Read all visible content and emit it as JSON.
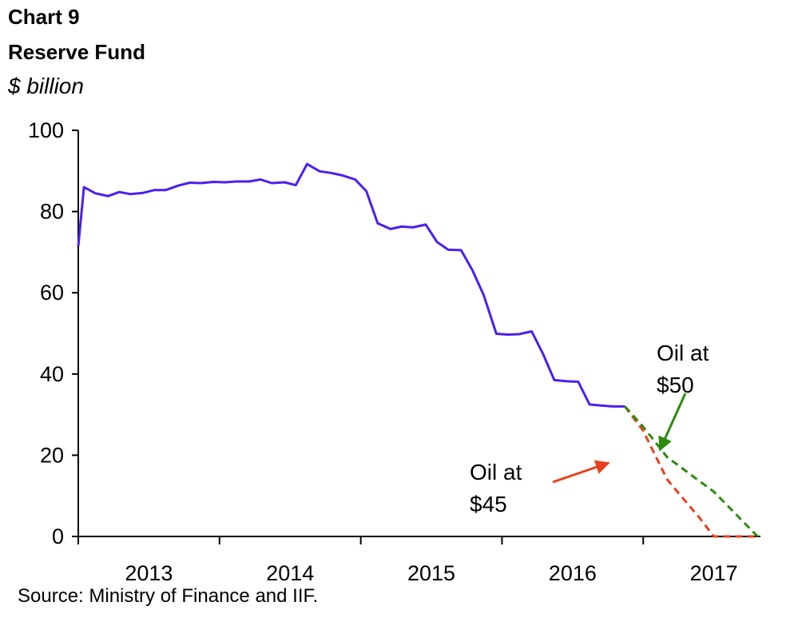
{
  "header": {
    "chart_number": "Chart 9",
    "title": "Reserve Fund",
    "units": "$ billion"
  },
  "source": "Source: Ministry of Finance and IIF.",
  "colors": {
    "actual": "#4b1ff0",
    "oil_45": "#e8401c",
    "oil_50": "#2e8a0e",
    "axis": "#000000"
  },
  "chart_data": {
    "type": "line",
    "title": "Reserve Fund",
    "ylabel": "$ billion",
    "ylim": [
      0,
      100
    ],
    "yticks": [
      0,
      20,
      40,
      60,
      80,
      100
    ],
    "xlim": [
      2012.25,
      2017.08
    ],
    "x_tick_marks": [
      2012.25,
      2013.25,
      2014.25,
      2015.25,
      2016.25
    ],
    "x_labels": [
      {
        "label": "2013",
        "x": 2012.75
      },
      {
        "label": "2014",
        "x": 2013.75
      },
      {
        "label": "2015",
        "x": 2014.75
      },
      {
        "label": "2016",
        "x": 2015.75
      },
      {
        "label": "2017",
        "x": 2016.75
      }
    ],
    "grid": false,
    "legend": "none",
    "series": [
      {
        "key": "actual",
        "style": "solid",
        "x": [
          2012.25,
          2012.29,
          2012.37,
          2012.46,
          2012.54,
          2012.62,
          2012.71,
          2012.79,
          2012.87,
          2012.96,
          2013.04,
          2013.12,
          2013.21,
          2013.29,
          2013.37,
          2013.46,
          2013.54,
          2013.62,
          2013.71,
          2013.79,
          2013.87,
          2013.96,
          2014.04,
          2014.12,
          2014.21,
          2014.29,
          2014.37,
          2014.46,
          2014.54,
          2014.62,
          2014.71,
          2014.79,
          2014.87,
          2014.96,
          2015.04,
          2015.12,
          2015.21,
          2015.29,
          2015.37,
          2015.46,
          2015.54,
          2015.62,
          2015.71,
          2015.79,
          2015.87,
          2015.96,
          2016.04,
          2016.12
        ],
        "values": [
          71.5,
          86.0,
          84.5,
          83.8,
          84.8,
          84.3,
          84.6,
          85.3,
          85.3,
          86.4,
          87.1,
          87.0,
          87.3,
          87.2,
          87.4,
          87.4,
          87.9,
          87.0,
          87.2,
          86.5,
          91.7,
          89.9,
          89.5,
          88.9,
          87.9,
          85.0,
          77.1,
          75.7,
          76.3,
          76.1,
          76.8,
          72.5,
          70.6,
          70.5,
          65.6,
          59.5,
          49.9,
          49.7,
          49.8,
          50.5,
          45.0,
          38.5,
          38.2,
          38.1,
          32.5,
          32.2,
          32.0,
          32.0
        ]
      },
      {
        "key": "oil_45",
        "style": "dashed",
        "x": [
          2016.12,
          2016.25,
          2016.42,
          2016.65,
          2016.75,
          2017.06
        ],
        "values": [
          32.0,
          26.0,
          14.0,
          4.5,
          0.0,
          0.0
        ]
      },
      {
        "key": "oil_50",
        "style": "dashed",
        "x": [
          2016.12,
          2016.25,
          2016.42,
          2016.75,
          2017.06
        ],
        "values": [
          32.0,
          27.0,
          19.5,
          11.0,
          0.0
        ]
      }
    ],
    "annotations": [
      {
        "key": "oil_50",
        "lines": [
          "Oil at",
          "$50"
        ],
        "points_to": {
          "x": 2016.38,
          "y": 20.5
        }
      },
      {
        "key": "oil_45",
        "lines": [
          "Oil at",
          "$45"
        ],
        "points_to": {
          "x": 2016.21,
          "y": 18.5
        }
      }
    ]
  }
}
